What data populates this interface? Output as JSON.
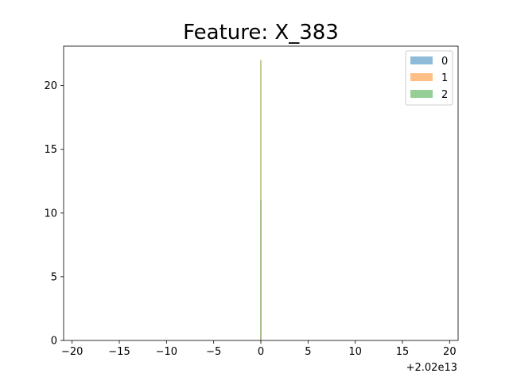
{
  "chart_data": {
    "type": "histogram",
    "title": "Feature: X_383",
    "xlabel": "",
    "ylabel": "",
    "x_offset_label": "+2.02e13",
    "xlim": [
      -20.9,
      20.9
    ],
    "ylim": [
      0,
      23.1
    ],
    "x_ticks": [
      -20,
      -15,
      -10,
      -5,
      0,
      5,
      10,
      15,
      20
    ],
    "x_tick_labels": [
      "−20",
      "−15",
      "−10",
      "−5",
      "0",
      "5",
      "10",
      "15",
      "20"
    ],
    "y_ticks": [
      0,
      5,
      10,
      15,
      20
    ],
    "y_tick_labels": [
      "0",
      "5",
      "10",
      "15",
      "20"
    ],
    "grid": false,
    "legend_position": "top-right",
    "series": [
      {
        "name": "0",
        "color": "#1f77b4",
        "alpha": 0.5,
        "bins": [
          {
            "x": 0,
            "count": 11
          }
        ]
      },
      {
        "name": "1",
        "color": "#ff7f0e",
        "alpha": 0.5,
        "bins": [
          {
            "x": 0,
            "count": 22
          }
        ]
      },
      {
        "name": "2",
        "color": "#2ca02c",
        "alpha": 0.5,
        "bins": [
          {
            "x": 0,
            "count": 22
          }
        ]
      }
    ]
  }
}
